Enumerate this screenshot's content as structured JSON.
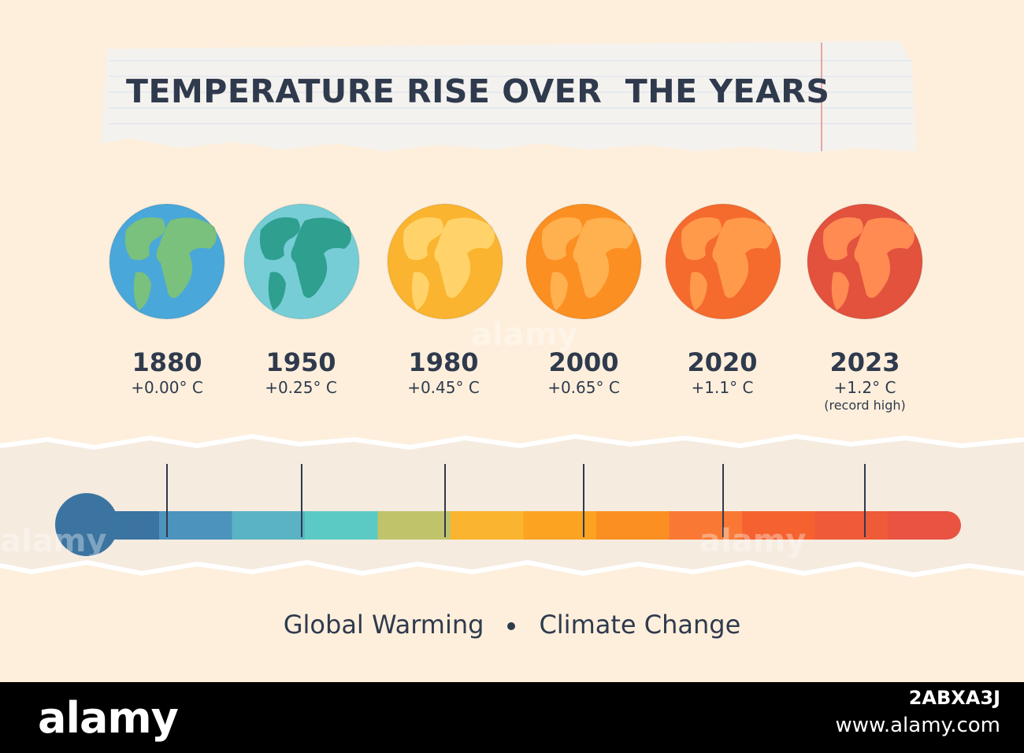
{
  "title": "TEMPERATURE RISE OVER  THE YEARS",
  "colors": {
    "background": "#fdefdc",
    "text": "#2f3a4d",
    "paper": "#f4f2ef",
    "thermo_bulb": "#3b74a0"
  },
  "globes": [
    {
      "year": "1880",
      "temp": "+0.00° C",
      "note": "",
      "ocean": "#4aa7d9",
      "land": "#79c17c",
      "icon": "earth-icon"
    },
    {
      "year": "1950",
      "temp": "+0.25° C",
      "note": "",
      "ocean": "#77cdd6",
      "land": "#2f9f8f",
      "icon": "earth-icon"
    },
    {
      "year": "1980",
      "temp": "+0.45° C",
      "note": "",
      "ocean": "#fbb42f",
      "land": "#ffd36a",
      "icon": "earth-icon"
    },
    {
      "year": "2000",
      "temp": "+0.65° C",
      "note": "",
      "ocean": "#fb8f22",
      "land": "#ffb04f",
      "icon": "earth-icon"
    },
    {
      "year": "2020",
      "temp": "+1.1° C",
      "note": "",
      "ocean": "#f56b2d",
      "land": "#ff9a4a",
      "icon": "earth-icon"
    },
    {
      "year": "2023",
      "temp": "+1.2° C",
      "note": "(record high)",
      "ocean": "#e2523d",
      "land": "#ff8a52",
      "icon": "earth-icon"
    }
  ],
  "thermometer": {
    "segments": [
      "#3b74a0",
      "#4c93bd",
      "#5ab3c4",
      "#5ccac4",
      "#c1c36a",
      "#fbb42f",
      "#fda322",
      "#fb8f22",
      "#f97934",
      "#f5622f",
      "#ef5a38",
      "#e95342"
    ]
  },
  "footer": {
    "left": "Global Warming",
    "right": "Climate Change"
  },
  "watermark": {
    "logo": "alamy",
    "code": "2ABXA3J",
    "site": "www.alamy.com",
    "faint": "alamy"
  }
}
